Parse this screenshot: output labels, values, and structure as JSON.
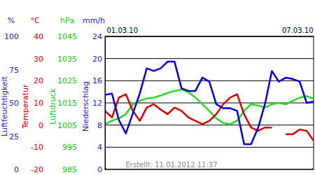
{
  "chart_data": [
    {
      "type": "line",
      "ylabel": "Luftfeuchtigkeit",
      "unit": "%",
      "color": "#0000e0",
      "x": [
        0,
        0.2,
        0.4,
        0.6,
        0.8,
        1,
        1.2,
        1.4,
        1.6,
        1.8,
        2,
        2.2,
        2.4,
        2.6,
        2.8,
        3,
        3.2,
        3.4,
        3.6,
        3.8,
        4,
        4.2,
        4.4,
        4.6,
        4.8,
        5,
        5.2,
        5.4,
        5.6,
        5.8,
        6
      ],
      "values": [
        56,
        57,
        37,
        27,
        42,
        57,
        76,
        74,
        76,
        81,
        81,
        61,
        59,
        59,
        69,
        66,
        49,
        46,
        46,
        44,
        19,
        19,
        31,
        49,
        74,
        66,
        69,
        68,
        66,
        50,
        51
      ],
      "xlim": [
        0,
        6
      ],
      "xticks": [
        {
          "value": 0,
          "label": "01.03.10"
        },
        {
          "value": 6,
          "label": "07.03.10"
        }
      ],
      "ylim": [
        0,
        100
      ],
      "yticks": [
        0,
        25,
        50,
        75,
        100
      ],
      "annotations": [
        "Erstellt: 11.01.2012 11:37"
      ]
    },
    {
      "type": "line",
      "ylabel": "Temperatur",
      "unit": "°C",
      "color": "#e00000",
      "x": [
        0,
        0.2,
        0.4,
        0.6,
        0.8,
        1,
        1.2,
        1.4,
        1.6,
        1.8,
        2,
        2.2,
        2.4,
        2.6,
        2.8,
        3,
        3.2,
        3.4,
        3.6,
        3.8,
        4,
        4.2,
        4.4,
        4.6,
        4.8,
        5,
        5.2,
        5.4,
        5.6,
        5.8,
        6
      ],
      "values": [
        6.4,
        3.4,
        12.4,
        13.9,
        6.4,
        1.9,
        7.9,
        9.4,
        7,
        4.9,
        7.9,
        6.4,
        3.4,
        1.9,
        0.4,
        1.9,
        4.9,
        9.4,
        12.4,
        13.9,
        4.9,
        -1.1,
        -2.6,
        -1.1,
        -1.1,
        null,
        -4.1,
        -4.1,
        -2,
        -2.6,
        -7.1
      ],
      "xlim": [
        0,
        6
      ],
      "ylim": [
        -20,
        40
      ],
      "yticks": [
        -20,
        -10,
        0,
        10,
        20,
        30,
        40
      ]
    },
    {
      "type": "line",
      "ylabel": "Luftdruck",
      "unit": "hPa",
      "color": "#22dd22",
      "x": [
        0,
        0.2,
        0.4,
        0.6,
        0.8,
        1,
        1.2,
        1.4,
        1.6,
        1.8,
        2,
        2.2,
        2.4,
        2.6,
        2.8,
        3,
        3.2,
        3.4,
        3.6,
        3.8,
        4,
        4.2,
        4.4,
        4.6,
        4.8,
        5,
        5.2,
        5.4,
        5.6,
        5.8,
        6
      ],
      "values": [
        1005.4,
        1007,
        1008,
        1010,
        1014.4,
        1016,
        1017,
        1017.4,
        1018.3,
        1019.5,
        1020.4,
        1021,
        1019.8,
        1017.4,
        1014.4,
        1011.4,
        1008,
        1006,
        1005.4,
        1007,
        1011.4,
        1014.4,
        1013.8,
        1012.9,
        1014.4,
        1015,
        1014.4,
        1015.9,
        1017.4,
        1018,
        1016.8
      ],
      "xlim": [
        0,
        6
      ],
      "ylim": [
        985,
        1045
      ],
      "yticks": [
        985,
        995,
        1005,
        1015,
        1025,
        1035,
        1045
      ]
    },
    {
      "type": "bar",
      "ylabel": "Niederschlag",
      "unit": "mm/h",
      "color": "#0000ff",
      "x": [
        0,
        0.2,
        0.4,
        0.6,
        0.8,
        1,
        1.2,
        1.4,
        1.6,
        1.8,
        2,
        2.2,
        2.4,
        2.6,
        2.8,
        3,
        3.2,
        3.4,
        3.6,
        3.8,
        4,
        4.2,
        4.4,
        4.6,
        4.8,
        5,
        5.2,
        5.4,
        5.6,
        5.8,
        6
      ],
      "values": [
        0.2,
        0,
        0,
        0,
        0,
        0,
        0,
        0,
        0,
        0,
        0,
        0,
        0,
        0,
        0,
        0,
        0,
        0,
        0,
        0,
        0,
        0,
        0,
        0,
        0,
        0,
        0,
        0,
        0,
        0,
        0.2
      ],
      "xlim": [
        0,
        6
      ],
      "ylim": [
        0,
        24
      ],
      "yticks": [
        0,
        4,
        8,
        12,
        16,
        20,
        24
      ],
      "grid": true
    }
  ]
}
